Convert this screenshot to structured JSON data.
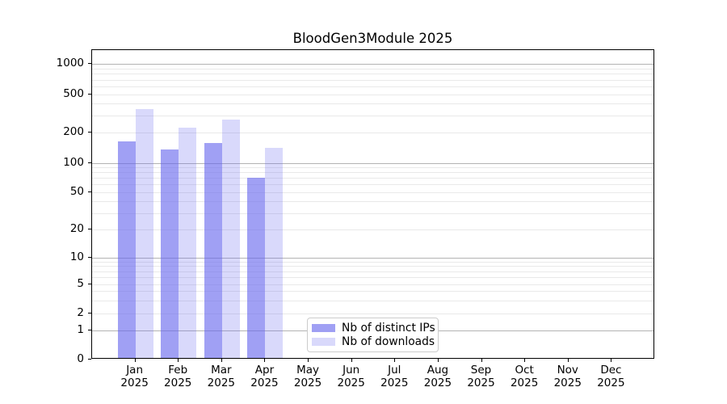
{
  "chart_data": {
    "type": "bar",
    "title": "BloodGen3Module 2025",
    "categories": [
      "Jan",
      "Feb",
      "Mar",
      "Apr",
      "May",
      "Jun",
      "Jul",
      "Aug",
      "Sep",
      "Oct",
      "Nov",
      "Dec"
    ],
    "category_sublabel": "2025",
    "series": [
      {
        "name": "Nb of distinct IPs",
        "color": "rgba(102,102,238,0.62)",
        "values": [
          162,
          135,
          158,
          71,
          0,
          0,
          0,
          0,
          0,
          0,
          0,
          0
        ]
      },
      {
        "name": "Nb of downloads",
        "color": "rgba(102,102,238,0.25)",
        "values": [
          350,
          226,
          275,
          142,
          0,
          0,
          0,
          0,
          0,
          0,
          0,
          0
        ]
      }
    ],
    "y_axis": {
      "scale": "log-above-1",
      "tick_labels": [
        "0",
        "1",
        "2",
        "5",
        "10",
        "20",
        "50",
        "100",
        "200",
        "500",
        "1000"
      ],
      "tick_values": [
        0,
        1,
        2,
        5,
        10,
        20,
        50,
        100,
        200,
        500,
        1000
      ],
      "major_grid_values": [
        1,
        10,
        100,
        1000
      ],
      "minor_grid_values": [
        2,
        3,
        4,
        5,
        6,
        7,
        8,
        9,
        20,
        30,
        40,
        50,
        60,
        70,
        80,
        90,
        200,
        300,
        400,
        500,
        600,
        700,
        800,
        900
      ],
      "major_grid_color": "#b3b3b3",
      "minor_grid_color": "#e9e9e9"
    },
    "legend": {
      "entries": [
        "Nb of distinct IPs",
        "Nb of downloads"
      ],
      "location": "lower-left-of-center"
    },
    "grid": true,
    "xlabel": "",
    "ylabel": ""
  }
}
